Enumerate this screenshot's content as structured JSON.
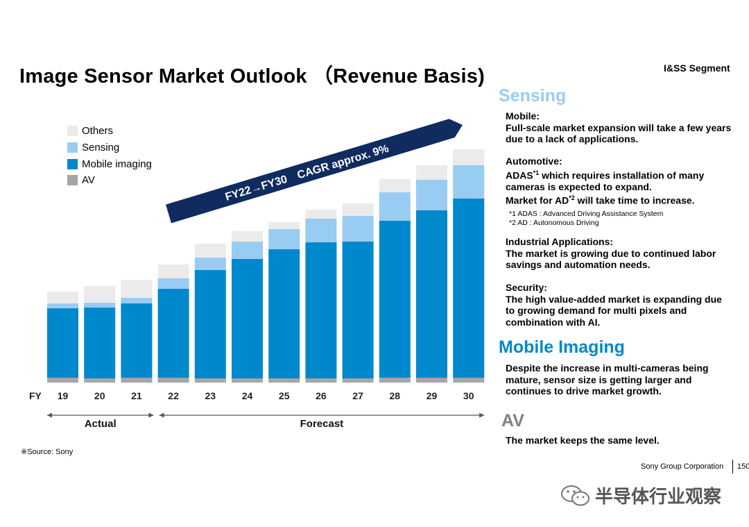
{
  "title": "Image Sensor Market Outlook （Revenue Basis)",
  "segment": "I&SS Segment",
  "source": "※Source: Sony",
  "chart_data": {
    "type": "bar",
    "stacked": true,
    "x_axis_label": "FY",
    "categories": [
      "19",
      "20",
      "21",
      "22",
      "23",
      "24",
      "25",
      "26",
      "27",
      "28",
      "29",
      "30"
    ],
    "series": [
      {
        "name": "AV",
        "color": "#a6a6a6",
        "values": [
          7,
          6,
          7,
          7,
          6,
          6,
          6,
          6,
          6,
          7,
          7,
          7
        ]
      },
      {
        "name": "Mobile imaging",
        "color": "#0088cc",
        "values": [
          100,
          102,
          107,
          128,
          156,
          172,
          186,
          196,
          197,
          226,
          241,
          258
        ]
      },
      {
        "name": "Sensing",
        "color": "#99ccf2",
        "values": [
          7,
          7,
          8,
          15,
          18,
          25,
          29,
          34,
          37,
          41,
          44,
          48
        ]
      },
      {
        "name": "Others",
        "color": "#ebebeb",
        "values": [
          17,
          24,
          26,
          20,
          20,
          15,
          10,
          13,
          18,
          19,
          21,
          23
        ]
      }
    ],
    "legend": [
      "Others",
      "Sensing",
      "Mobile imaging",
      "AV"
    ],
    "legend_placement": "top-left",
    "grid": false,
    "ylim": [
      0,
      340
    ],
    "periods": [
      {
        "label": "Actual",
        "from": "19",
        "to": "21"
      },
      {
        "label": "Forecast",
        "from": "22",
        "to": "30"
      }
    ],
    "annotation": "FY22→FY30　CAGR approx. 9%",
    "annotation_color": "#0f2b5f"
  },
  "sections": {
    "sensing": {
      "heading": "Sensing",
      "heading_color": "#99ccf2",
      "mobile": {
        "label": "Mobile:",
        "lines": [
          "Full-scale market expansion will take a few years",
          "due to a lack of applications."
        ]
      },
      "automotive": {
        "label": "Automotive:",
        "line1_pre": "ADAS",
        "line1_sup": "*1",
        "line1_post": " which requires installation of many",
        "line2": "cameras is expected to expand.",
        "line3_pre": "Market for AD",
        "line3_sup": "*2",
        "line3_post": " will take time to increase."
      },
      "notes": [
        "*1 ADAS : Advanced Driving Assistance System",
        "*2 AD : Autonomous Driving"
      ],
      "industrial": {
        "label": "Industrial Applications:",
        "lines": [
          "The market is growing due to continued labor",
          "savings and automation needs."
        ]
      },
      "security": {
        "label": "Security:",
        "lines": [
          "The high value-added market is expanding due",
          "to growing demand for multi pixels and",
          "combination with AI."
        ]
      }
    },
    "mobile_imaging": {
      "heading": "Mobile Imaging",
      "heading_color": "#0088cc",
      "lines": [
        "Despite the increase in multi-cameras being",
        "mature, sensor size is getting larger and",
        "continues to drive market growth."
      ]
    },
    "av": {
      "heading": "AV",
      "heading_color": "#808080",
      "lines": [
        "The market keeps the same level."
      ]
    }
  },
  "footer": {
    "company": "Sony Group Corporation",
    "page": "150"
  },
  "watermark": {
    "text": "半导体行业观察",
    "icon": "wechat-icon"
  }
}
